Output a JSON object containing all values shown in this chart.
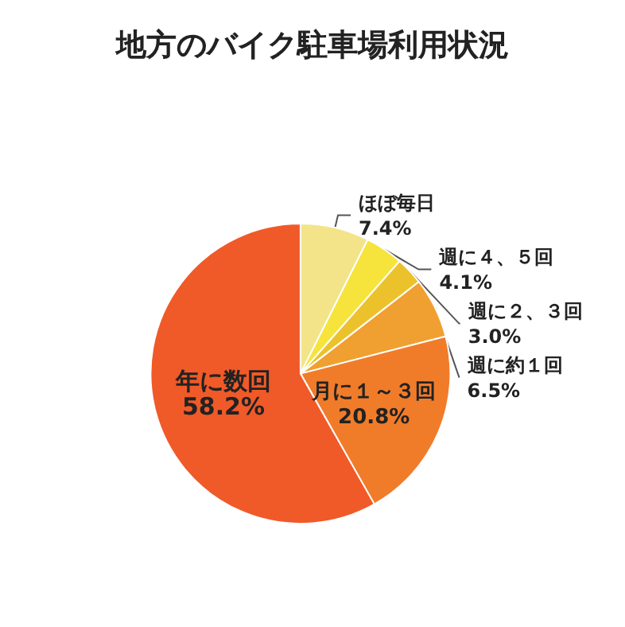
{
  "chart_data": {
    "type": "pie",
    "title": "地方のバイク駐車場利用状況",
    "categories": [
      "ほぼ毎日",
      "週に４、５回",
      "週に２、３回",
      "週に約１回",
      "月に１～３回",
      "年に数回"
    ],
    "values": [
      7.4,
      4.1,
      3.0,
      6.5,
      20.8,
      58.2
    ],
    "value_labels": [
      "7.4%",
      "4.1%",
      "3.0%",
      "6.5%",
      "20.8%",
      "58.2%"
    ],
    "colors": [
      "#f3e48a",
      "#f6e43c",
      "#ecc22c",
      "#f0a030",
      "#f07c2a",
      "#f05a28"
    ],
    "legend": false
  }
}
